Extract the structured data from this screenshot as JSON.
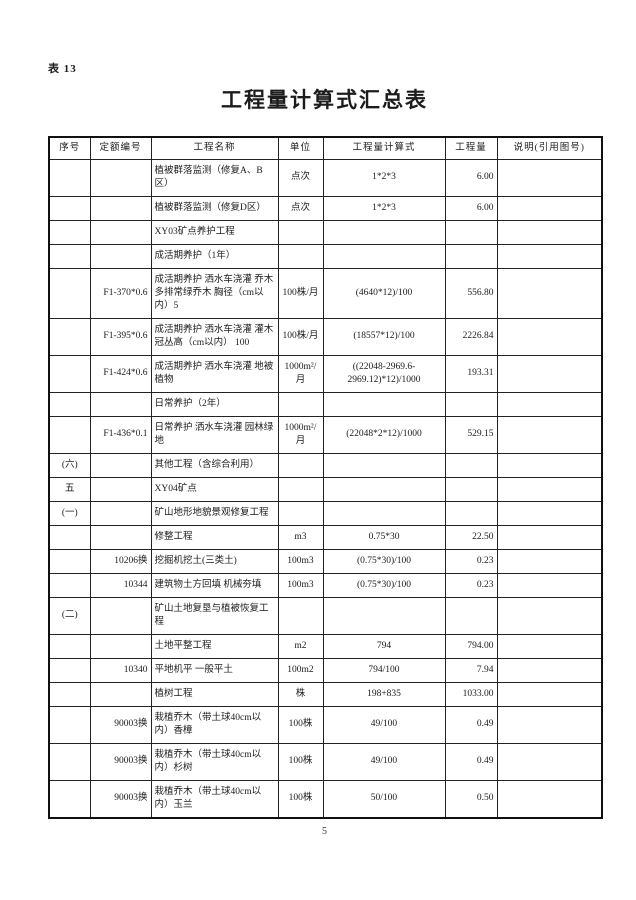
{
  "page": {
    "tag": "表 13",
    "title": "工程量计算式汇总表",
    "page_number": "5"
  },
  "table": {
    "headers": [
      "序号",
      "定额编号",
      "工程名称",
      "单位",
      "工程量计算式",
      "工程量",
      "说明(引用图号)"
    ],
    "rows": [
      {
        "sn": "",
        "code": "",
        "name": "植被群落监测（修复A、B区）",
        "unit": "点次",
        "formula": "1*2*3",
        "qty": "6.00",
        "note": ""
      },
      {
        "sn": "",
        "code": "",
        "name": "植被群落监测（修复D区）",
        "unit": "点次",
        "formula": "1*2*3",
        "qty": "6.00",
        "note": ""
      },
      {
        "sn": "",
        "code": "",
        "name": "XY03矿点养护工程",
        "unit": "",
        "formula": "",
        "qty": "",
        "note": ""
      },
      {
        "sn": "",
        "code": "",
        "name": "成活期养护（1年）",
        "unit": "",
        "formula": "",
        "qty": "",
        "note": ""
      },
      {
        "sn": "",
        "code": "F1-370*0.6",
        "name": "成活期养护 洒水车浇灌 乔木 多排常绿乔木 胸径（cm以内）5",
        "unit": "100株/月",
        "formula": "(4640*12)/100",
        "qty": "556.80",
        "note": ""
      },
      {
        "sn": "",
        "code": "F1-395*0.6",
        "name": "成活期养护 洒水车浇灌 灌木 冠丛高（cm以内） 100",
        "unit": "100株/月",
        "formula": "(18557*12)/100",
        "qty": "2226.84",
        "note": ""
      },
      {
        "sn": "",
        "code": "F1-424*0.6",
        "name": "成活期养护 洒水车浇灌 地被植物",
        "unit": "1000m²/月",
        "formula": "((22048-2969.6-2969.12)*12)/1000",
        "qty": "193.31",
        "note": ""
      },
      {
        "sn": "",
        "code": "",
        "name": "日常养护（2年）",
        "unit": "",
        "formula": "",
        "qty": "",
        "note": ""
      },
      {
        "sn": "",
        "code": "F1-436*0.1",
        "name": "日常养护 洒水车浇灌 园林绿地",
        "unit": "1000m²/月",
        "formula": "(22048*2*12)/1000",
        "qty": "529.15",
        "note": ""
      },
      {
        "sn": "(六)",
        "code": "",
        "name": "其他工程（含综合利用）",
        "unit": "",
        "formula": "",
        "qty": "",
        "note": ""
      },
      {
        "sn": "五",
        "code": "",
        "name": "XY04矿点",
        "unit": "",
        "formula": "",
        "qty": "",
        "note": ""
      },
      {
        "sn": "(一)",
        "code": "",
        "name": "矿山地形地貌景观修复工程",
        "unit": "",
        "formula": "",
        "qty": "",
        "note": ""
      },
      {
        "sn": "",
        "code": "",
        "name": "修整工程",
        "unit": "m3",
        "formula": "0.75*30",
        "qty": "22.50",
        "note": ""
      },
      {
        "sn": "",
        "code": "10206换",
        "name": "挖掘机挖土(三类土)",
        "unit": "100m3",
        "formula": "(0.75*30)/100",
        "qty": "0.23",
        "note": ""
      },
      {
        "sn": "",
        "code": "10344",
        "name": "建筑物土方回填 机械夯填",
        "unit": "100m3",
        "formula": "(0.75*30)/100",
        "qty": "0.23",
        "note": ""
      },
      {
        "sn": "(二)",
        "code": "",
        "name": "矿山土地复垦与植被恢复工程",
        "unit": "",
        "formula": "",
        "qty": "",
        "note": ""
      },
      {
        "sn": "",
        "code": "",
        "name": "土地平整工程",
        "unit": "m2",
        "formula": "794",
        "qty": "794.00",
        "note": ""
      },
      {
        "sn": "",
        "code": "10340",
        "name": "平地机平 一般平土",
        "unit": "100m2",
        "formula": "794/100",
        "qty": "7.94",
        "note": ""
      },
      {
        "sn": "",
        "code": "",
        "name": "植树工程",
        "unit": "株",
        "formula": "198+835",
        "qty": "1033.00",
        "note": ""
      },
      {
        "sn": "",
        "code": "90003换",
        "name": "栽植乔木（带土球40cm以内）香樟",
        "unit": "100株",
        "formula": "49/100",
        "qty": "0.49",
        "note": ""
      },
      {
        "sn": "",
        "code": "90003换",
        "name": "栽植乔木（带土球40cm以内）杉树",
        "unit": "100株",
        "formula": "49/100",
        "qty": "0.49",
        "note": ""
      },
      {
        "sn": "",
        "code": "90003换",
        "name": "栽植乔木（带土球40cm以内）玉兰",
        "unit": "100株",
        "formula": "50/100",
        "qty": "0.50",
        "note": ""
      }
    ]
  }
}
